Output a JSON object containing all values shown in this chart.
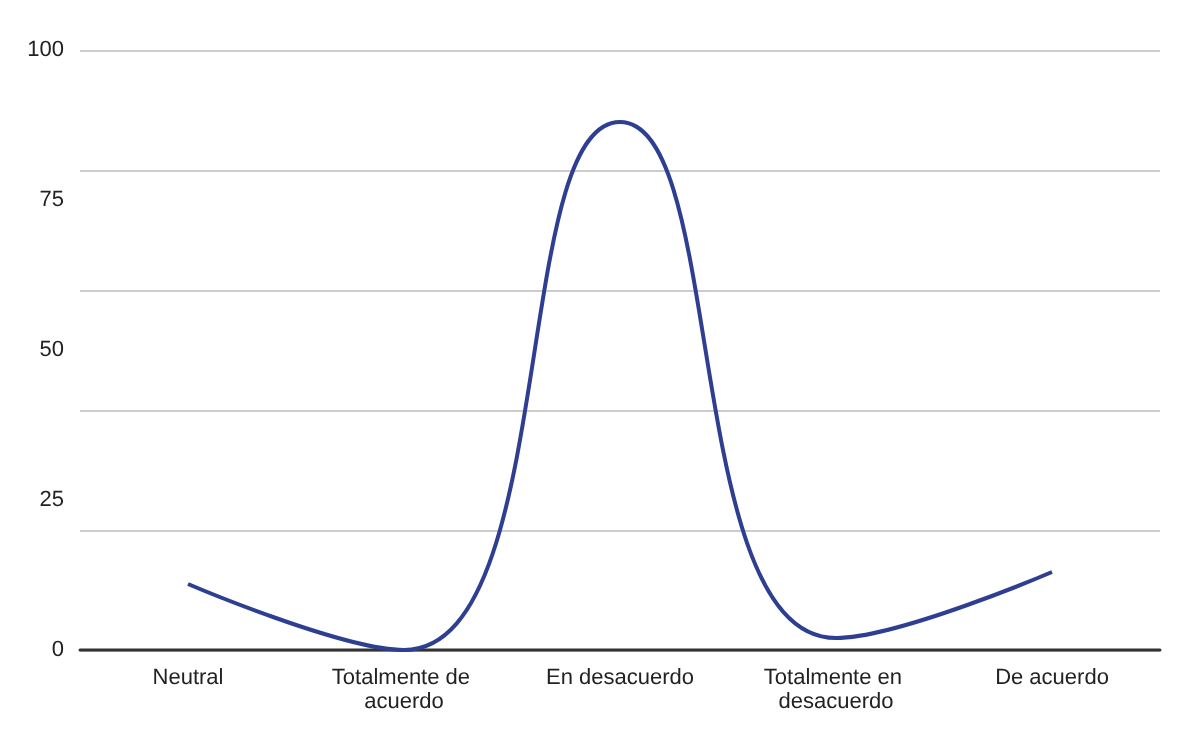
{
  "chart_data": {
    "type": "line",
    "categories": [
      "Neutral",
      "Totalmente de acuerdo",
      "En desacuerdo",
      "Totalmente en desacuerdo",
      "De acuerdo"
    ],
    "series": [
      {
        "color": "#2e3f91",
        "values": [
          11,
          0,
          88,
          2,
          13
        ]
      }
    ],
    "ylim": [
      0,
      100
    ],
    "yticks": [
      0,
      25,
      50,
      75,
      100
    ],
    "grid": "y",
    "marker": "none",
    "line_style": "solid"
  }
}
